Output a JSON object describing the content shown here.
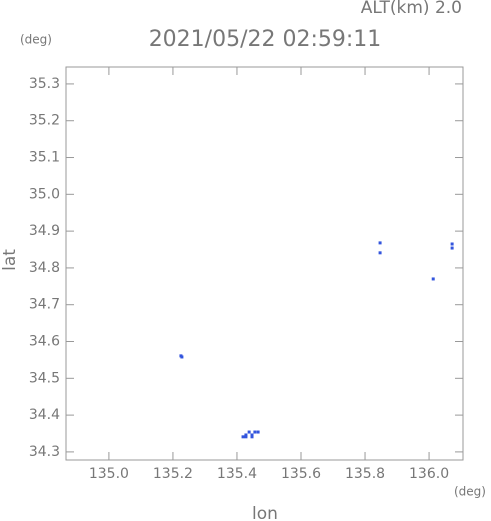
{
  "chart_data": {
    "type": "scatter",
    "title": "2021/05/22 02:59:11",
    "annotation": "ALT(km) 2.0",
    "y_unit": "(deg)",
    "x_unit": "(deg)",
    "xlabel": "lon",
    "ylabel": "lat",
    "xlim": [
      134.866,
      136.106
    ],
    "ylim": [
      34.278,
      35.346
    ],
    "xticks": [
      {
        "value": 135.0,
        "label": "135.0"
      },
      135.2,
      135.4,
      135.6,
      135.8,
      {
        "value": 136.0,
        "label": "136.0"
      }
    ],
    "yticks": [
      34.3,
      34.4,
      34.5,
      34.6,
      34.7,
      34.8,
      34.9,
      {
        "value": 35.0,
        "label": "35.0"
      },
      35.1,
      35.2,
      35.3
    ],
    "series": [
      {
        "color": "#3355dd",
        "x": [
          135.225,
          135.228,
          135.419,
          135.428,
          135.438,
          135.447,
          135.456,
          135.466,
          135.428,
          135.447,
          135.847,
          135.847,
          136.013,
          136.072,
          136.072
        ],
        "values": [
          34.561,
          34.558,
          34.341,
          34.346,
          34.354,
          34.346,
          34.354,
          34.354,
          34.341,
          34.341,
          34.868,
          34.841,
          34.77,
          34.865,
          34.854
        ]
      }
    ]
  }
}
